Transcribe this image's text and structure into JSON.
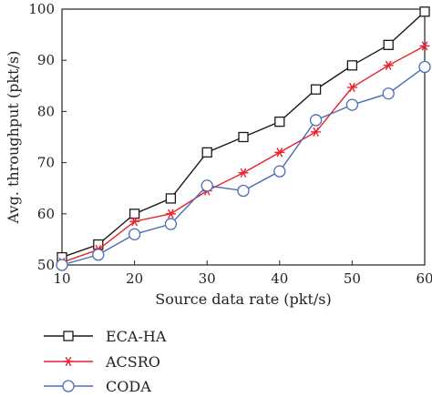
{
  "chart_data": {
    "type": "line",
    "xlabel": "Source data rate (pkt/s)",
    "ylabel": "Avg. throughput (pkt/s)",
    "xlim": [
      10,
      60
    ],
    "ylim": [
      50,
      100
    ],
    "xticks": [
      10,
      20,
      30,
      40,
      50,
      60
    ],
    "yticks": [
      50,
      60,
      70,
      80,
      90,
      100
    ],
    "grid": false,
    "legend_position": "below",
    "x": [
      10,
      15,
      20,
      25,
      30,
      35,
      40,
      45,
      50,
      55,
      60
    ],
    "series": [
      {
        "name": "ECA-HA",
        "marker": "square",
        "color": "#1a1a1a",
        "values": [
          51.5,
          54,
          60,
          63,
          72,
          75,
          78,
          84.3,
          89,
          93,
          99.5
        ]
      },
      {
        "name": "ACSRO",
        "marker": "asterisk",
        "color": "#e8202a",
        "values": [
          50.5,
          53,
          58.5,
          60,
          64.5,
          68,
          72,
          76,
          84.7,
          89,
          92.8
        ]
      },
      {
        "name": "CODA",
        "marker": "circle",
        "color": "#4a6db5",
        "values": [
          50,
          52,
          56,
          58,
          65.5,
          64.5,
          68.3,
          78.3,
          81.3,
          83.5,
          88.7
        ]
      }
    ]
  }
}
